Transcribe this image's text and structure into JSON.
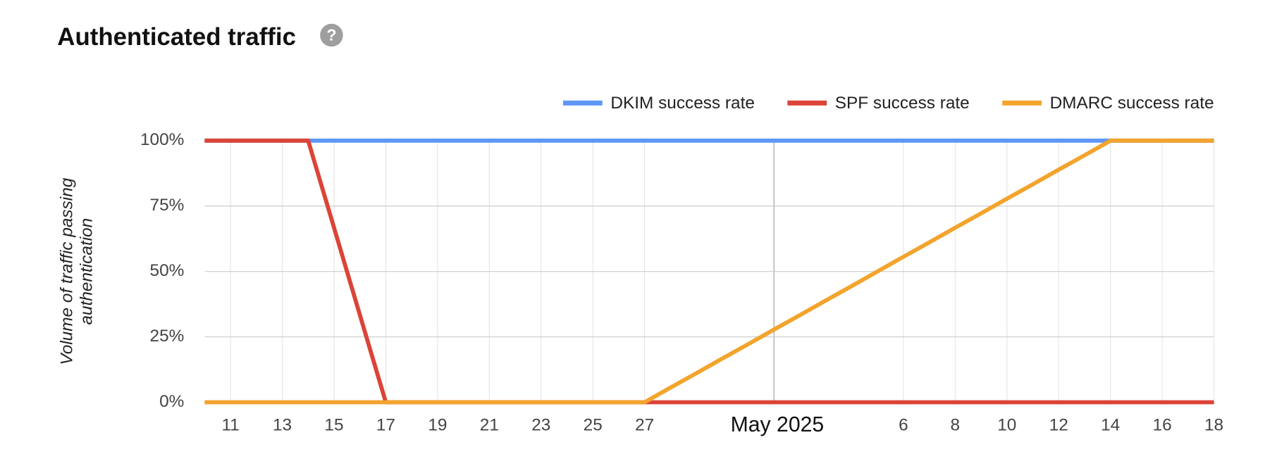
{
  "chart_data": {
    "type": "line",
    "title": "Authenticated traffic",
    "y_label_lines": [
      "Volume of traffic passing",
      "authentication"
    ],
    "categories": [
      null,
      "11",
      null,
      "13",
      null,
      "15",
      null,
      "17",
      null,
      "19",
      null,
      "21",
      null,
      "23",
      null,
      "25",
      null,
      "27",
      null,
      null,
      null,
      null,
      "May 2025",
      null,
      null,
      null,
      null,
      "6",
      null,
      "8",
      null,
      "10",
      null,
      "12",
      null,
      "14",
      null,
      "16",
      null,
      "18"
    ],
    "series": [
      {
        "name": "DKIM success rate",
        "color": "#5e97f6",
        "values": [
          100,
          100,
          100,
          100,
          100,
          100,
          100,
          100,
          100,
          100,
          100,
          100,
          100,
          100,
          100,
          100,
          100,
          100,
          100,
          100,
          100,
          100,
          100,
          100,
          100,
          100,
          100,
          100,
          100,
          100,
          100,
          100,
          100,
          100,
          100,
          100,
          100,
          100,
          100,
          100
        ]
      },
      {
        "name": "SPF success rate",
        "color": "#db4437",
        "values": [
          100,
          100,
          100,
          100,
          100,
          66.7,
          33.3,
          0,
          0,
          0,
          0,
          0,
          0,
          0,
          0,
          0,
          0,
          0,
          0,
          0,
          0,
          0,
          0,
          0,
          0,
          0,
          0,
          0,
          0,
          0,
          0,
          0,
          0,
          0,
          0,
          0,
          0,
          0,
          0,
          0
        ]
      },
      {
        "name": "DMARC success rate",
        "color": "#f2a42d",
        "values": [
          0,
          0,
          0,
          0,
          0,
          0,
          0,
          0,
          0,
          0,
          0,
          0,
          0,
          0,
          0,
          0,
          0,
          0,
          5.6,
          11.1,
          16.7,
          22.2,
          27.8,
          33.3,
          38.9,
          44.4,
          50,
          55.6,
          61.1,
          66.7,
          72.2,
          77.8,
          83.3,
          88.9,
          94.4,
          100,
          100,
          100,
          100,
          100
        ]
      }
    ],
    "ylim": [
      0,
      100
    ],
    "yticks": [
      {
        "value": 0,
        "label": "0%"
      },
      {
        "value": 25,
        "label": "25%"
      },
      {
        "value": 50,
        "label": "50%"
      },
      {
        "value": 75,
        "label": "75%"
      },
      {
        "value": 100,
        "label": "100%"
      }
    ],
    "grid": true,
    "legend": "top-right"
  }
}
